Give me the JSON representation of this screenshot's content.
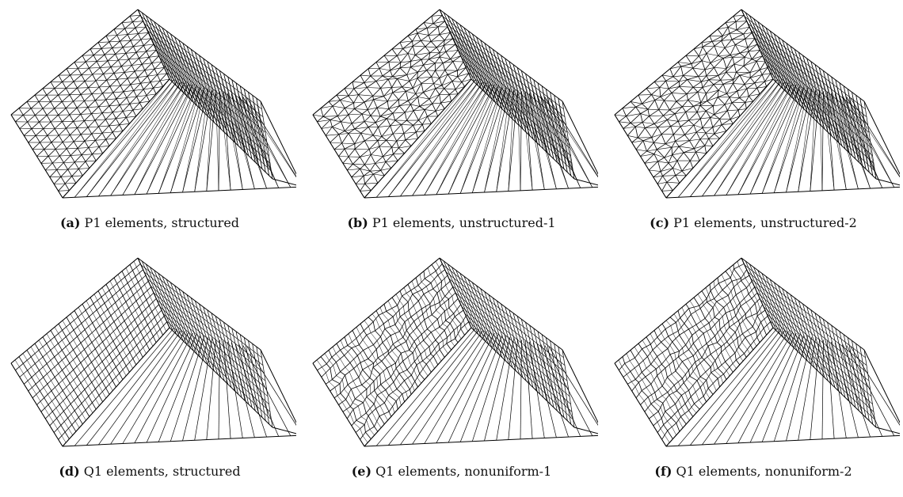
{
  "figure": {
    "panels": [
      {
        "tag": "(a)",
        "text": "P1 elements, structured",
        "element": "P1",
        "mesh": "structured"
      },
      {
        "tag": "(b)",
        "text": "P1 elements, unstructured-1",
        "element": "P1",
        "mesh": "unstructured"
      },
      {
        "tag": "(c)",
        "text": "P1 elements, unstructured-2",
        "element": "P1",
        "mesh": "unstructured"
      },
      {
        "tag": "(d)",
        "text": "Q1 elements, structured",
        "element": "Q1",
        "mesh": "structured"
      },
      {
        "tag": "(e)",
        "text": "Q1 elements, nonuniform-1",
        "element": "Q1",
        "mesh": "nonuniform"
      },
      {
        "tag": "(f)",
        "text": "Q1 elements, nonuniform-2",
        "element": "Q1",
        "mesh": "nonuniform"
      }
    ],
    "stroke_color": "#000000",
    "background": "#ffffff"
  }
}
